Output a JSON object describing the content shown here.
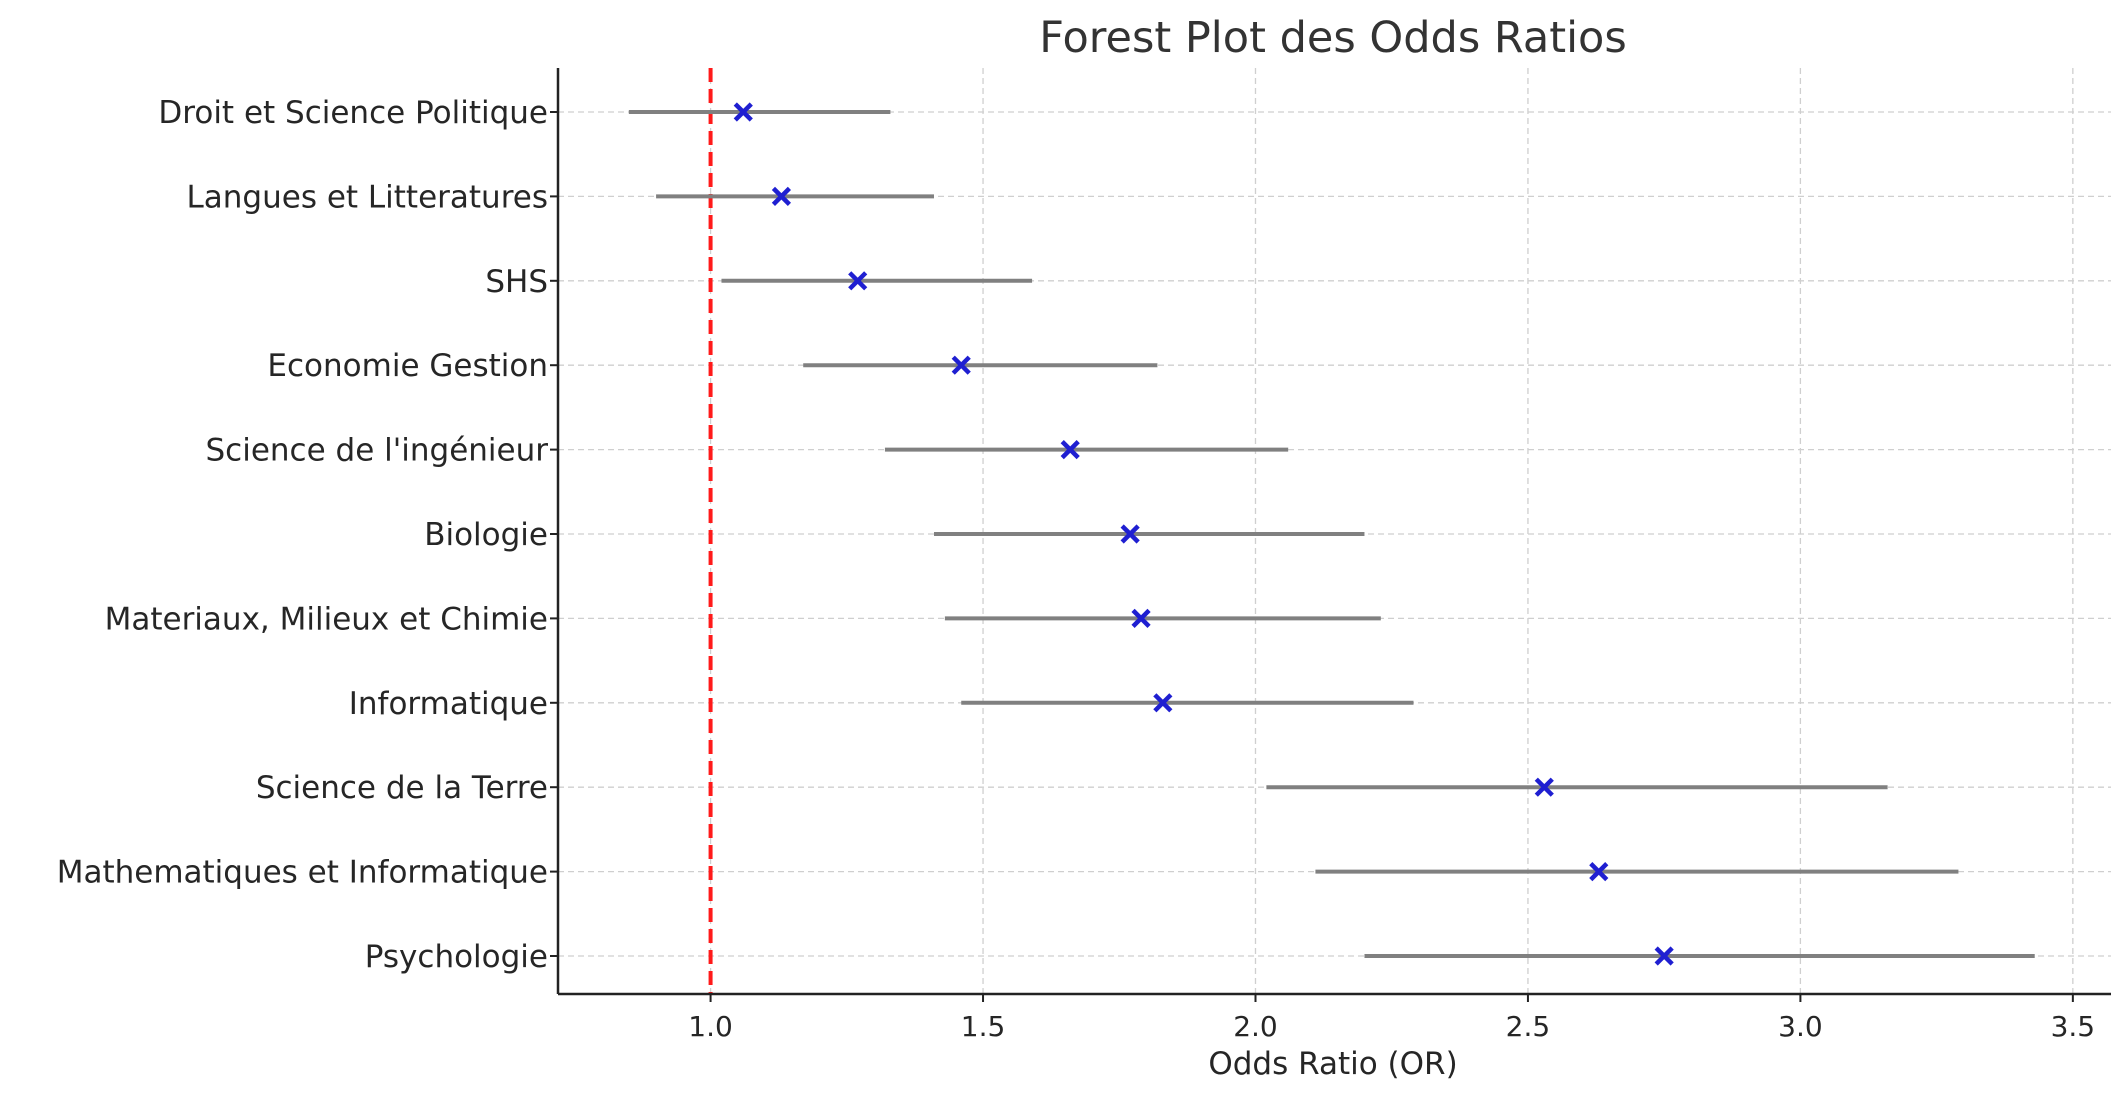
{
  "chart_data": {
    "type": "scatter",
    "title": "Forest Plot des Odds Ratios",
    "xlabel": "Odds Ratio (OR)",
    "ylabel": "",
    "xlim": [
      0.72,
      3.57
    ],
    "xticks": [
      "1.0",
      "1.5",
      "2.0",
      "2.5",
      "3.0",
      "3.5"
    ],
    "grid": true,
    "reference_line": {
      "x": 1.0,
      "color": "#ff1a1a",
      "style": "dashed"
    },
    "marker_color": "#1f1fd1",
    "ci_color": "#808080",
    "categories": [
      "Droit et Science Politique",
      "Langues et Litteratures",
      "SHS",
      "Economie Gestion",
      "Science de l'ingénieur",
      "Biologie",
      "Materiaux, Milieux et Chimie",
      "Informatique",
      "Science de la Terre",
      "Mathematiques et Informatique",
      "Psychologie"
    ],
    "or": [
      1.06,
      1.13,
      1.27,
      1.46,
      1.66,
      1.77,
      1.79,
      1.83,
      2.53,
      2.63,
      2.75
    ],
    "ci_lower": [
      0.85,
      0.9,
      1.02,
      1.17,
      1.32,
      1.41,
      1.43,
      1.46,
      2.02,
      2.11,
      2.2
    ],
    "ci_upper": [
      1.33,
      1.41,
      1.59,
      1.82,
      2.06,
      2.2,
      2.23,
      2.29,
      3.16,
      3.29,
      3.43
    ]
  }
}
